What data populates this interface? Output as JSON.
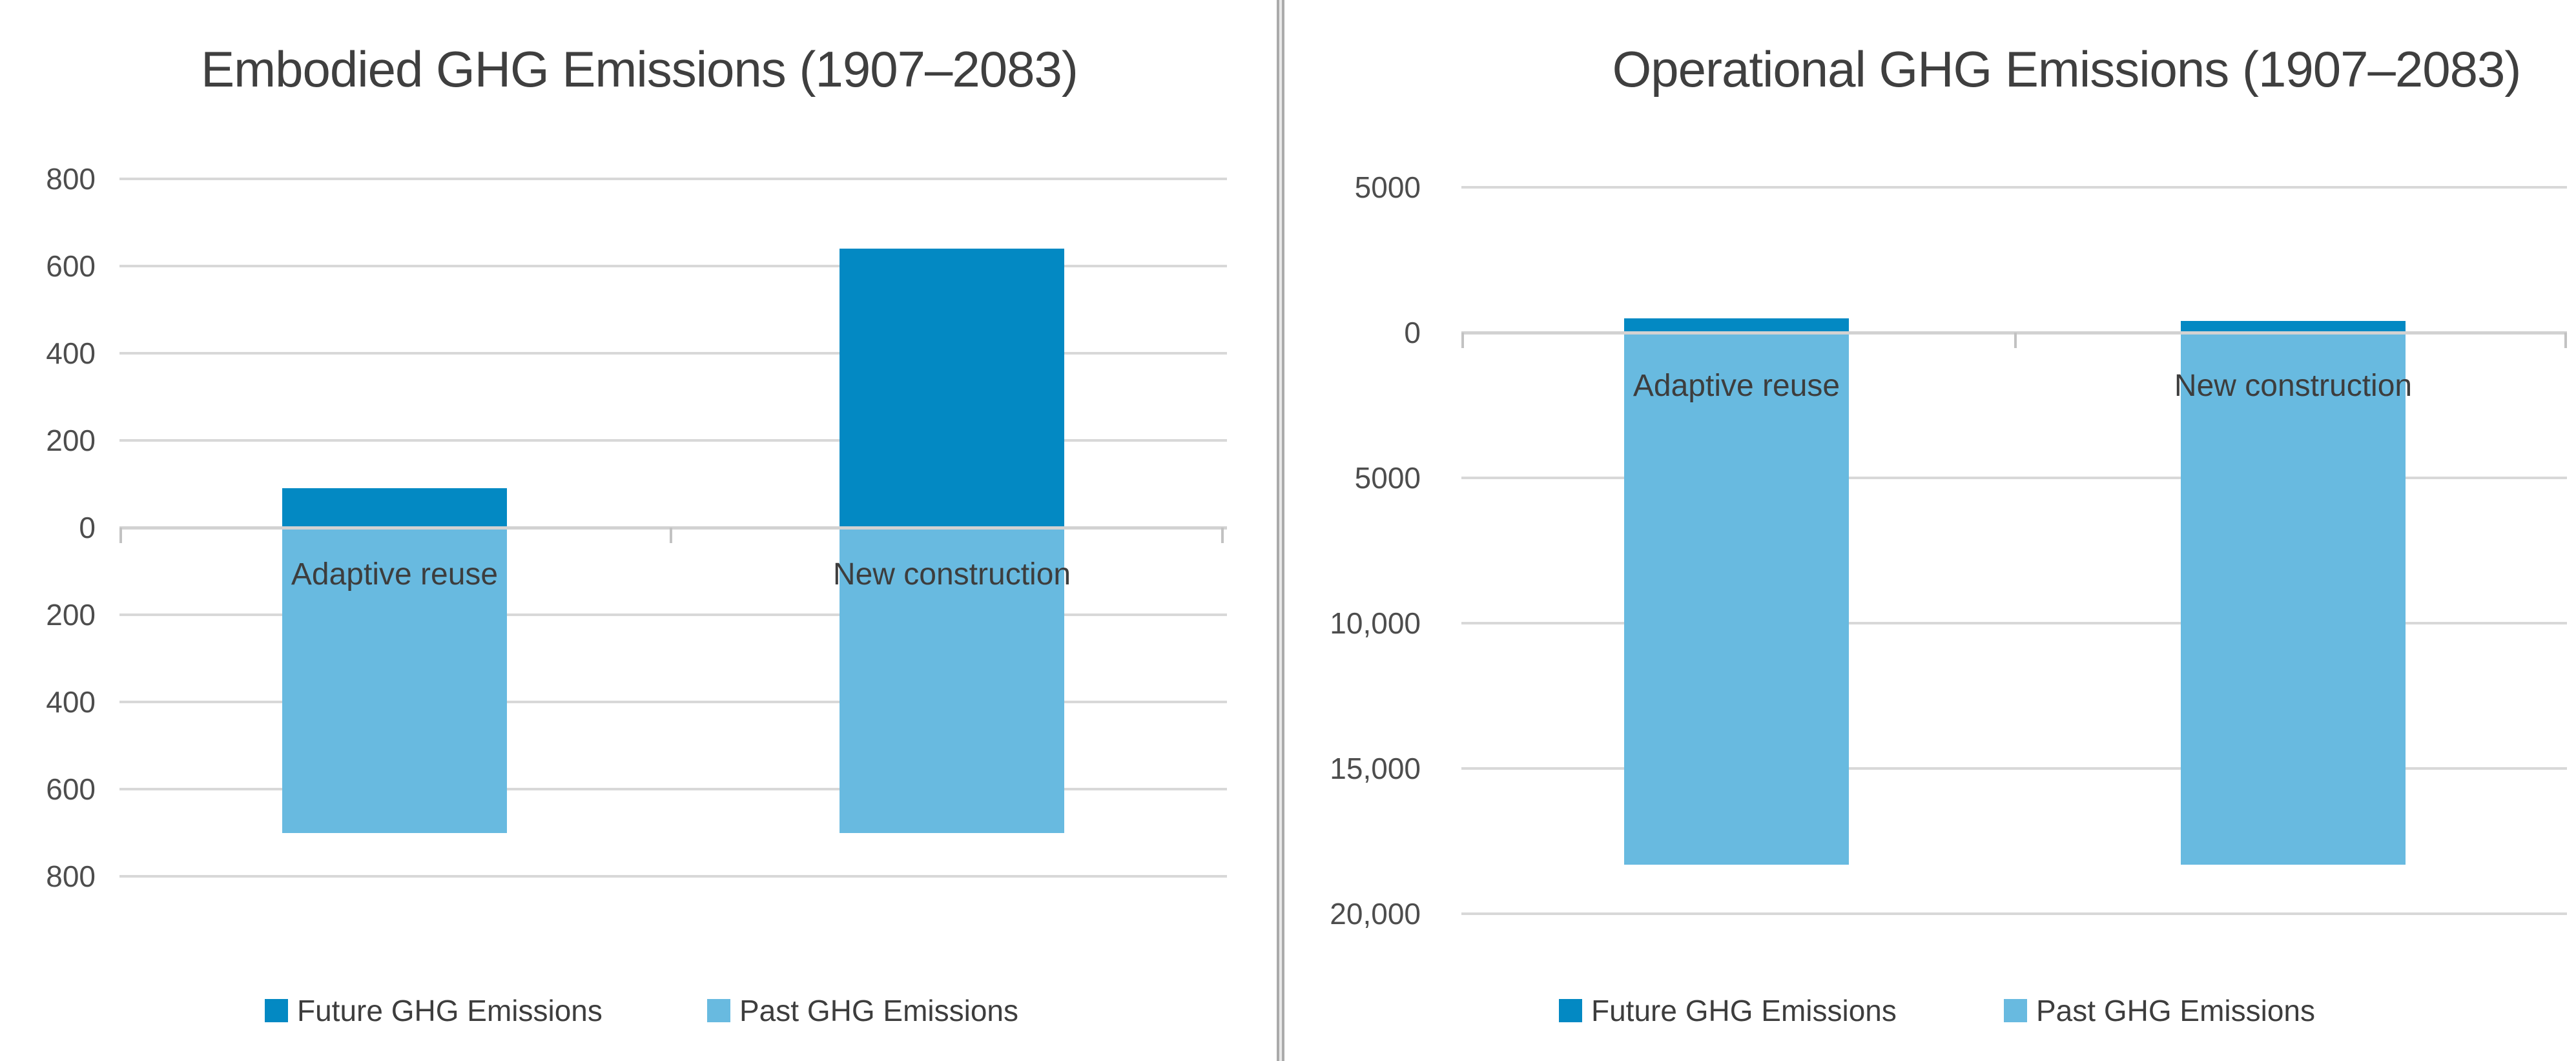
{
  "page": {
    "background": "#ffffff",
    "layout": "two charts side by side separated by a vertical divider"
  },
  "colors": {
    "future_series": "#0389c3",
    "past_series": "#68bae0",
    "gridline": "#d8d8d8",
    "text": "#3f3f3f"
  },
  "chart_data": [
    {
      "type": "bar",
      "stacked": true,
      "title": "Embodied GHG Emissions (1907–2083)",
      "categories": [
        "Adaptive reuse",
        "New construction"
      ],
      "series": [
        {
          "name": "Future GHG Emissions",
          "color": "#0389c3",
          "values": [
            90,
            640
          ]
        },
        {
          "name": "Past GHG Emissions",
          "color": "#68bae0",
          "values": [
            -700,
            -700
          ]
        }
      ],
      "ylim": [
        800,
        -800
      ],
      "gridline_spacing": 200,
      "grid": true,
      "legend_position": "bottom",
      "yticks": [
        {
          "value": 800,
          "label": "800"
        },
        {
          "value": 600,
          "label": "600"
        },
        {
          "value": 400,
          "label": "400"
        },
        {
          "value": 200,
          "label": "200"
        },
        {
          "value": 0,
          "label": "0"
        },
        {
          "value": -200,
          "label": "200"
        },
        {
          "value": -400,
          "label": "400"
        },
        {
          "value": -600,
          "label": "600"
        },
        {
          "value": -800,
          "label": "800"
        }
      ],
      "axis_note": "tick labels show absolute values; bars below zero are Past emissions"
    },
    {
      "type": "bar",
      "stacked": true,
      "title": "Operational GHG Emissions (1907–2083)",
      "categories": [
        "Adaptive reuse",
        "New construction"
      ],
      "series": [
        {
          "name": "Future GHG Emissions",
          "color": "#0389c3",
          "values": [
            500,
            400
          ]
        },
        {
          "name": "Past GHG Emissions",
          "color": "#68bae0",
          "values": [
            -18300,
            -18300
          ]
        }
      ],
      "ylim": [
        5000,
        -20000
      ],
      "gridline_spacing": 5000,
      "grid": true,
      "legend_position": "bottom",
      "yticks": [
        {
          "value": 5000,
          "label": "5000"
        },
        {
          "value": 0,
          "label": "0"
        },
        {
          "value": -5000,
          "label": "5000"
        },
        {
          "value": -10000,
          "label": "10,000"
        },
        {
          "value": -15000,
          "label": "15,000"
        },
        {
          "value": -20000,
          "label": "20,000"
        }
      ],
      "axis_note": "tick labels show absolute values; bars below zero are Past emissions"
    }
  ]
}
